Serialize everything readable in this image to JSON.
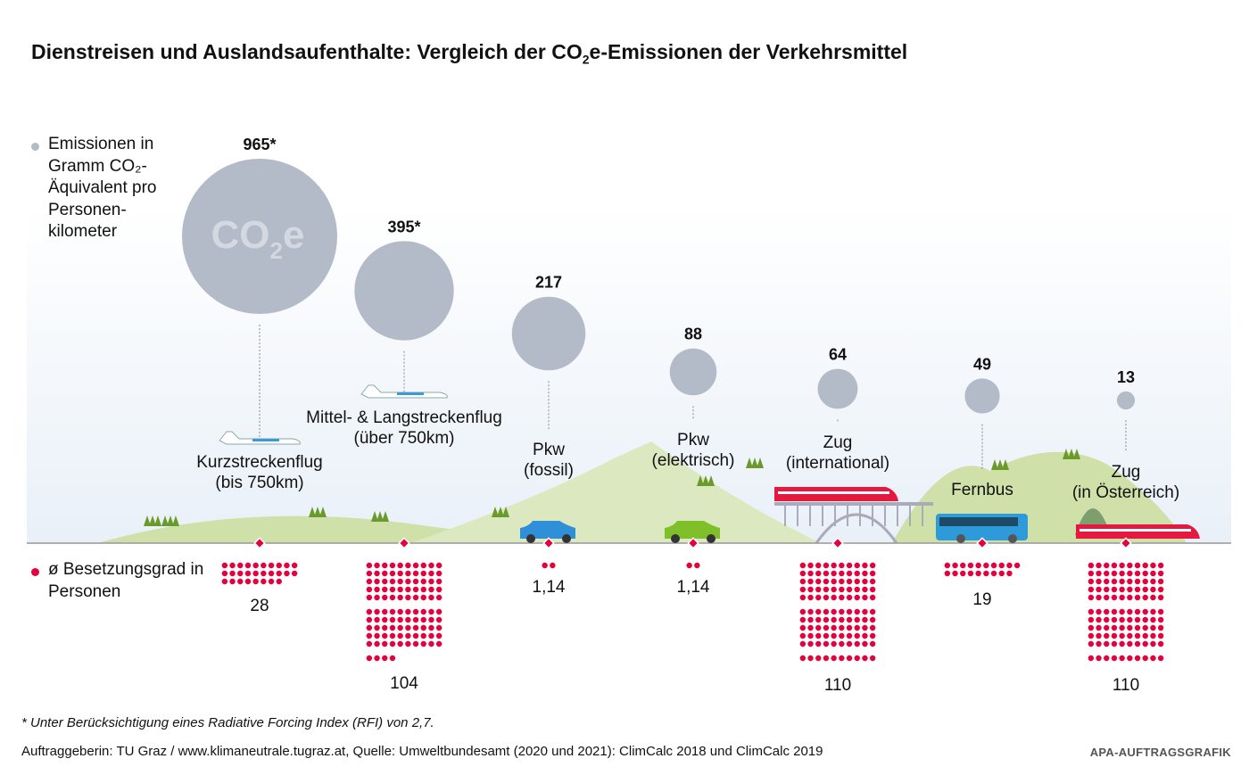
{
  "title_pre": "Dienstreisen und Auslandsaufenthalte: Vergleich der CO",
  "title_sub": "2",
  "title_post": "e-Emissionen der Verkehrsmittel",
  "legend_emissions": "Emissionen in Gramm CO₂-Äquivalent pro Personen-kilometer",
  "legend_occupancy": "ø Besetzungsgrad in Personen",
  "bubble_logo": "CO₂e",
  "footnote": "* Unter Berücksichtigung eines Radiative Forcing Index (RFI) von 2,7.",
  "source": "Auftraggeberin: TU Graz / www.klimaneutrale.tugraz.at, Quelle: Umweltbundesamt (2020 und 2021): ClimCalc 2018 und ClimCalc 2019",
  "credit": "APA-AUFTRAGSGRAFIK",
  "colors": {
    "bubble": "#b3bac8",
    "dot": "#e5003e",
    "hill": "#cfe0a8"
  },
  "chart_data": {
    "type": "bubble",
    "categories": [
      "Kurzstreckenflug (bis 750km)",
      "Mittel- & Langstreckenflug (über 750km)",
      "Pkw (fossil)",
      "Pkw (elektrisch)",
      "Zug (international)",
      "Fernbus",
      "Zug (in Österreich)"
    ],
    "items": [
      {
        "line1": "Kurzstreckenflug",
        "line2": "(bis 750km)",
        "emissions": 965,
        "emissions_label": "965*",
        "occupancy": 28,
        "occupancy_label": "28",
        "vehicle": "plane-small"
      },
      {
        "line1": "Mittel- & Langstreckenflug",
        "line2": "(über 750km)",
        "emissions": 395,
        "emissions_label": "395*",
        "occupancy": 104,
        "occupancy_label": "104",
        "vehicle": "plane-large"
      },
      {
        "line1": "Pkw",
        "line2": "(fossil)",
        "emissions": 217,
        "emissions_label": "217",
        "occupancy": 1.14,
        "occupancy_label": "1,14",
        "vehicle": "car-blue"
      },
      {
        "line1": "Pkw",
        "line2": "(elektrisch)",
        "emissions": 88,
        "emissions_label": "88",
        "occupancy": 1.14,
        "occupancy_label": "1,14",
        "vehicle": "car-green"
      },
      {
        "line1": "Zug",
        "line2": "(international)",
        "emissions": 64,
        "emissions_label": "64",
        "occupancy": 110,
        "occupancy_label": "110",
        "vehicle": "train-bridge"
      },
      {
        "line1": "",
        "line2": "Fernbus",
        "emissions": 49,
        "emissions_label": "49",
        "occupancy": 19,
        "occupancy_label": "19",
        "vehicle": "bus"
      },
      {
        "line1": "Zug",
        "line2": "(in Österreich)",
        "emissions": 13,
        "emissions_label": "13",
        "occupancy": 110,
        "occupancy_label": "110",
        "vehicle": "train-tunnel"
      }
    ]
  }
}
